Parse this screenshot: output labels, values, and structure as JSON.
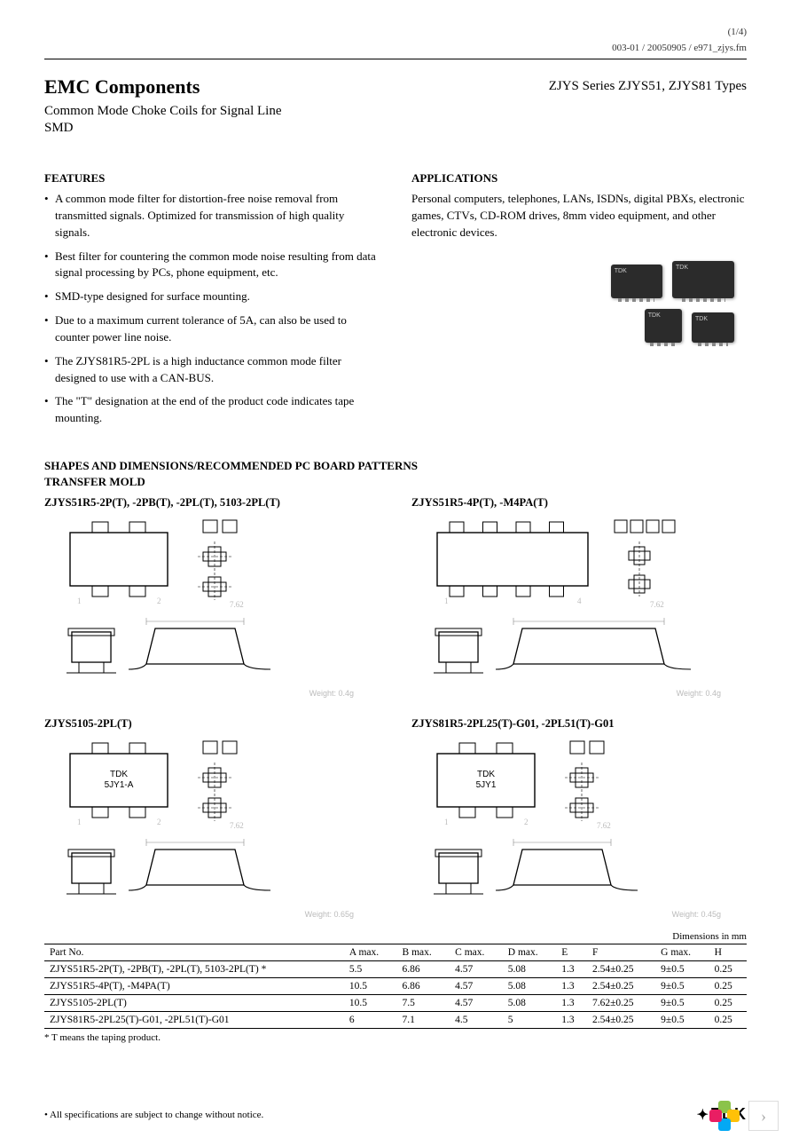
{
  "meta": {
    "page_indicator": "(1/4)",
    "doc_ref": "003-01 / 20050905 / e971_zjys.fm"
  },
  "header": {
    "title": "EMC Components",
    "subtitle1": "Common Mode Choke Coils for Signal Line",
    "subtitle2": "SMD",
    "series": "ZJYS Series  ZJYS51, ZJYS81 Types"
  },
  "features": {
    "heading": "FEATURES",
    "items": [
      "A common mode filter for distortion-free noise removal from transmitted signals. Optimized for transmission of high quality signals.",
      "Best filter for countering the common mode noise resulting from data signal processing by PCs, phone equipment, etc.",
      "SMD-type designed for surface mounting.",
      "Due to a maximum current tolerance of 5A, can also be used to counter power line noise.",
      "The ZJYS81R5-2PL is a high inductance common mode filter designed to use with a CAN-BUS.",
      "The \"T\" designation at the end of the product code indicates tape mounting."
    ]
  },
  "applications": {
    "heading": "APPLICATIONS",
    "text": "Personal computers, telephones, LANs, ISDNs, digital PBXs, electronic games, CTVs, CD-ROM drives, 8mm video equipment, and other electronic devices."
  },
  "chip_brand": "TDK",
  "shapes": {
    "heading1": "SHAPES AND DIMENSIONS/RECOMMENDED PC BOARD PATTERNS",
    "heading2": "TRANSFER MOLD"
  },
  "diagrams": [
    {
      "title": "ZJYS51R5-2P(T), -2PB(T), -2PL(T), 5103-2PL(T)",
      "pads": 2,
      "brand_top": "",
      "weight": "Weight: 0.4g"
    },
    {
      "title": "ZJYS51R5-4P(T), -M4PA(T)",
      "pads": 4,
      "brand_top": "",
      "weight": "Weight: 0.4g"
    },
    {
      "title": "ZJYS5105-2PL(T)",
      "pads": 2,
      "brand_top": "TDK",
      "brand_sub": "5JY1-A",
      "weight": "Weight: 0.65g"
    },
    {
      "title": "ZJYS81R5-2PL25(T)-G01, -2PL51(T)-G01",
      "pads": 2,
      "brand_top": "TDK",
      "brand_sub": "5JY1",
      "weight": "Weight: 0.45g"
    }
  ],
  "table": {
    "caption": "Dimensions in mm",
    "columns": [
      "Part No.",
      "A max.",
      "B max.",
      "C max.",
      "D max.",
      "E",
      "F",
      "G max.",
      "H"
    ],
    "rows": [
      [
        "ZJYS51R5-2P(T), -2PB(T), -2PL(T), 5103-2PL(T)    *",
        "5.5",
        "6.86",
        "4.57",
        "5.08",
        "1.3",
        "2.54±0.25",
        "9±0.5",
        "0.25"
      ],
      [
        "ZJYS51R5-4P(T), -M4PA(T)",
        "10.5",
        "6.86",
        "4.57",
        "5.08",
        "1.3",
        "2.54±0.25",
        "9±0.5",
        "0.25"
      ],
      [
        "ZJYS5105-2PL(T)",
        "10.5",
        "7.5",
        "4.57",
        "5.08",
        "1.3",
        "7.62±0.25",
        "9±0.5",
        "0.25"
      ],
      [
        "ZJYS81R5-2PL25(T)-G01, -2PL51(T)-G01",
        "6",
        "7.1",
        "4.5",
        "5",
        "1.3",
        "2.54±0.25",
        "9±0.5",
        "0.25"
      ]
    ],
    "note": "* T means the taping product."
  },
  "footer": {
    "disclaimer": "• All specifications are subject to change without notice.",
    "logo_text": "TDK"
  },
  "nav": {
    "next_glyph": "›"
  },
  "colors": {
    "pinwheel": [
      "#8bc34a",
      "#ffc107",
      "#03a9f4",
      "#e91e63"
    ]
  }
}
